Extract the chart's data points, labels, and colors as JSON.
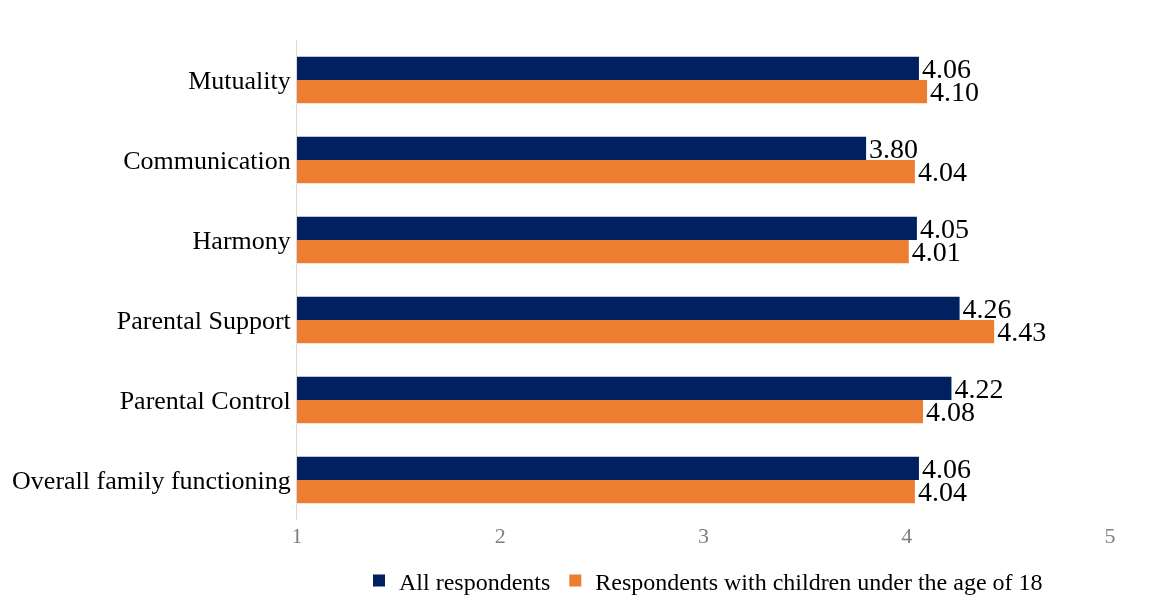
{
  "chart_data": {
    "type": "bar",
    "orientation": "horizontal",
    "categories": [
      "Mutuality",
      "Communication",
      "Harmony",
      "Parental Support",
      "Parental Control",
      "Overall family functioning"
    ],
    "series": [
      {
        "name": "All respondents",
        "color": "#002060",
        "values": [
          4.06,
          3.8,
          4.05,
          4.26,
          4.22,
          4.06
        ],
        "value_labels": [
          "4.06",
          "3.80",
          "4.05",
          "4.26",
          "4.22",
          "4.06"
        ]
      },
      {
        "name": "Respondents with children under the age of 18",
        "color": "#ed7d31",
        "values": [
          4.1,
          4.04,
          4.01,
          4.43,
          4.08,
          4.04
        ],
        "value_labels": [
          "4.10",
          "4.04",
          "4.01",
          "4.43",
          "4.08",
          "4.04"
        ]
      }
    ],
    "xlim": [
      1,
      5
    ],
    "xticks": [
      1,
      2,
      3,
      4,
      5
    ],
    "legend": "bottom"
  }
}
